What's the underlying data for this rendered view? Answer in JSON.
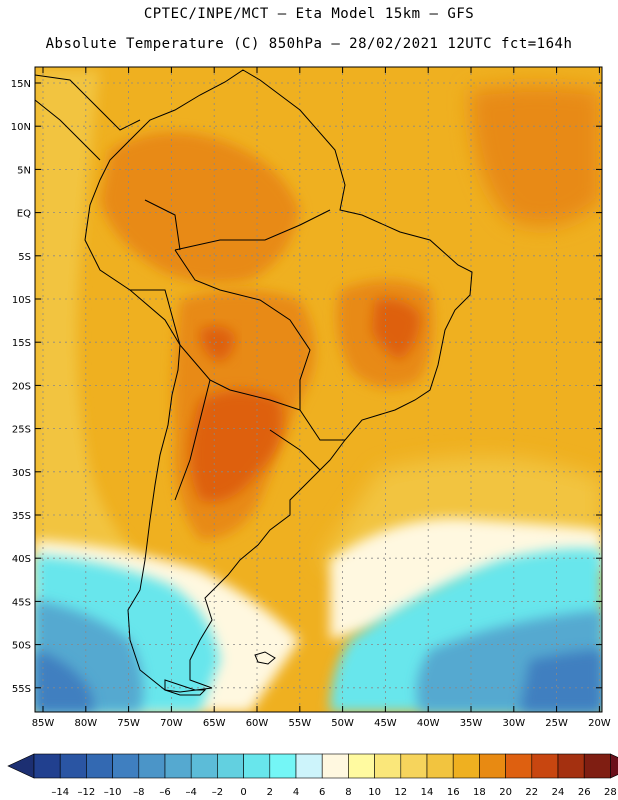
{
  "header": {
    "line1": "CPTEC/INPE/MCT –  Eta Model 15km – GFS",
    "line2": "Absolute Temperature (C) 850hPa – 28/02/2021 12UTC fct=164h"
  },
  "axes": {
    "lat_labels": [
      "15N",
      "10N",
      "5N",
      "EQ",
      "5S",
      "10S",
      "15S",
      "20S",
      "25S",
      "30S",
      "35S",
      "40S",
      "45S",
      "50S",
      "55S"
    ],
    "lon_labels": [
      "85W",
      "80W",
      "75W",
      "70W",
      "65W",
      "60W",
      "55W",
      "50W",
      "45W",
      "40W",
      "35W",
      "30W",
      "25W",
      "20W"
    ]
  },
  "colorbar": {
    "tick_labels": [
      "-14",
      "-12",
      "-10",
      "-8",
      "-6",
      "-4",
      "-2",
      "0",
      "2",
      "4",
      "6",
      "8",
      "10",
      "12",
      "14",
      "16",
      "18",
      "20",
      "22",
      "24",
      "26",
      "28"
    ],
    "colors": [
      "#21408f",
      "#2a55a3",
      "#3369b2",
      "#3f7fc0",
      "#4b95c8",
      "#55a9d0",
      "#5cbcd8",
      "#62d0e0",
      "#68e6ec",
      "#74f6f6",
      "#cdf4fb",
      "#fff8e0",
      "#fffaa0",
      "#fae77a",
      "#f6d45c",
      "#f2c43f",
      "#efb020",
      "#e88a12",
      "#de6010",
      "#c84610",
      "#a43010",
      "#7f1e12"
    ],
    "under_color": "#1c2f72",
    "over_color": "#6a0f1a"
  },
  "map": {
    "colors": {
      "cold_deep": "#3f7fc0",
      "cold": "#55a9d0",
      "cool": "#68e6ec",
      "pale": "#cdf4fb",
      "cream": "#fff8e0",
      "yellow": "#fae77a",
      "warm": "#f2c43f",
      "orange": "#efb020",
      "hot": "#e88a12",
      "hotter": "#de6010",
      "land_outline": "#000000",
      "grid": "#888888"
    }
  }
}
